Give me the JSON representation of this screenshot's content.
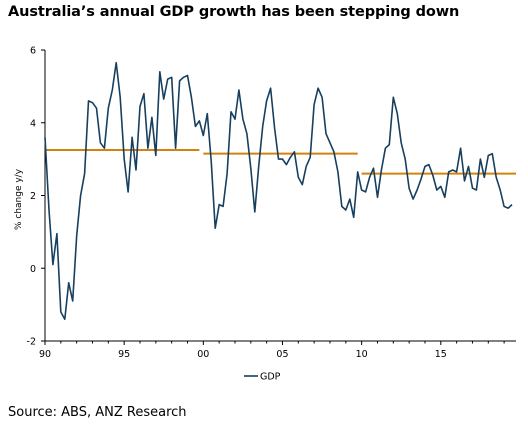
{
  "title": "Australia’s annual GDP growth has been stepping down",
  "source": "Source: ABS, ANZ Research",
  "colors": {
    "gdp": "#173f5f",
    "trend": "#d4820f",
    "axis": "#000000"
  },
  "chart_data": {
    "type": "line",
    "ylabel": "% change y/y",
    "xlabel": "",
    "xlim": [
      1990,
      2019.75
    ],
    "ylim": [
      -2,
      6
    ],
    "yticks": [
      6,
      4,
      2,
      0,
      -2
    ],
    "xticks": [
      1990,
      1995,
      2000,
      2005,
      2010,
      2015
    ],
    "xtick_labels": [
      "90",
      "95",
      "00",
      "05",
      "10",
      "15"
    ],
    "legend": [
      "GDP"
    ],
    "legend_position": "bottom",
    "grid": false,
    "series": [
      {
        "name": "GDP",
        "x": [
          1990.0,
          1990.25,
          1990.5,
          1990.75,
          1991.0,
          1991.25,
          1991.5,
          1991.75,
          1992.0,
          1992.25,
          1992.5,
          1992.75,
          1993.0,
          1993.25,
          1993.5,
          1993.75,
          1994.0,
          1994.25,
          1994.5,
          1994.75,
          1995.0,
          1995.25,
          1995.5,
          1995.75,
          1996.0,
          1996.25,
          1996.5,
          1996.75,
          1997.0,
          1997.25,
          1997.5,
          1997.75,
          1998.0,
          1998.25,
          1998.5,
          1998.75,
          1999.0,
          1999.25,
          1999.5,
          1999.75,
          2000.0,
          2000.25,
          2000.5,
          2000.75,
          2001.0,
          2001.25,
          2001.5,
          2001.75,
          2002.0,
          2002.25,
          2002.5,
          2002.75,
          2003.0,
          2003.25,
          2003.5,
          2003.75,
          2004.0,
          2004.25,
          2004.5,
          2004.75,
          2005.0,
          2005.25,
          2005.5,
          2005.75,
          2006.0,
          2006.25,
          2006.5,
          2006.75,
          2007.0,
          2007.25,
          2007.5,
          2007.75,
          2008.0,
          2008.25,
          2008.5,
          2008.75,
          2009.0,
          2009.25,
          2009.5,
          2009.75,
          2010.0,
          2010.25,
          2010.5,
          2010.75,
          2011.0,
          2011.25,
          2011.5,
          2011.75,
          2012.0,
          2012.25,
          2012.5,
          2012.75,
          2013.0,
          2013.25,
          2013.5,
          2013.75,
          2014.0,
          2014.25,
          2014.5,
          2014.75,
          2015.0,
          2015.25,
          2015.5,
          2015.75,
          2016.0,
          2016.25,
          2016.5,
          2016.75,
          2017.0,
          2017.25,
          2017.5,
          2017.75,
          2018.0,
          2018.25,
          2018.5,
          2018.75,
          2019.0,
          2019.25,
          2019.5
        ],
        "values": [
          3.6,
          1.6,
          0.1,
          0.95,
          -1.2,
          -1.4,
          -0.4,
          -0.9,
          0.9,
          2.0,
          2.6,
          4.6,
          4.55,
          4.4,
          3.45,
          3.3,
          4.4,
          4.9,
          5.65,
          4.7,
          3.0,
          2.1,
          3.6,
          2.7,
          4.45,
          4.8,
          3.3,
          4.15,
          3.1,
          5.4,
          4.65,
          5.2,
          5.25,
          3.3,
          5.15,
          5.25,
          5.3,
          4.7,
          3.9,
          4.05,
          3.65,
          4.25,
          2.95,
          1.1,
          1.75,
          1.7,
          2.6,
          4.3,
          4.1,
          4.9,
          4.1,
          3.7,
          2.75,
          1.55,
          2.8,
          3.9,
          4.6,
          4.95,
          3.85,
          3.0,
          3.0,
          2.85,
          3.05,
          3.2,
          2.5,
          2.3,
          2.8,
          3.05,
          4.5,
          4.95,
          4.7,
          3.7,
          3.45,
          3.2,
          2.65,
          1.7,
          1.6,
          1.9,
          1.4,
          2.65,
          2.15,
          2.1,
          2.5,
          2.75,
          1.95,
          2.7,
          3.3,
          3.4,
          4.7,
          4.25,
          3.45,
          3.0,
          2.2,
          1.9,
          2.15,
          2.45,
          2.8,
          2.85,
          2.55,
          2.15,
          2.25,
          1.95,
          2.65,
          2.7,
          2.65,
          3.3,
          2.4,
          2.8,
          2.2,
          2.15,
          3.0,
          2.5,
          3.1,
          3.15,
          2.5,
          2.15,
          1.7,
          1.65,
          1.75
        ]
      },
      {
        "name": "",
        "segments": [
          {
            "x": [
              1990.0,
              1999.75
            ],
            "y": [
              3.25,
              3.25
            ]
          },
          {
            "x": [
              2000.0,
              2009.75
            ],
            "y": [
              3.15,
              3.15
            ]
          },
          {
            "x": [
              2010.0,
              2019.75
            ],
            "y": [
              2.6,
              2.6
            ]
          }
        ]
      }
    ]
  }
}
